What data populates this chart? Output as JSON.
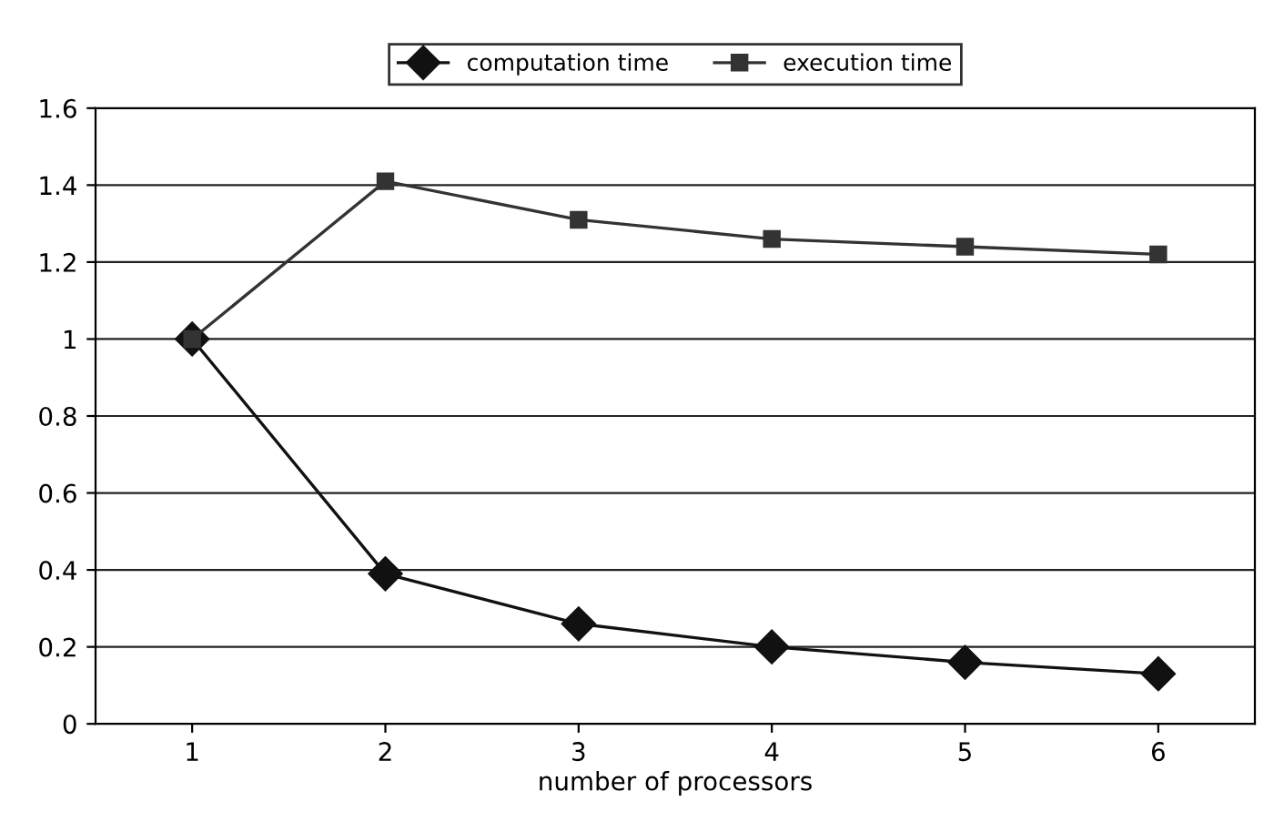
{
  "chart_data": {
    "type": "line",
    "xlabel": "number of processors",
    "categories": [
      "1",
      "2",
      "3",
      "4",
      "5",
      "6"
    ],
    "series": [
      {
        "name": "computation time",
        "color": "#111111",
        "marker": "diamond",
        "values": [
          1,
          0.39,
          0.26,
          0.2,
          0.16,
          0.13
        ]
      },
      {
        "name": "execution time",
        "color": "#333333",
        "marker": "square",
        "values": [
          1,
          1.41,
          1.31,
          1.26,
          1.24,
          1.22
        ]
      }
    ],
    "ylim": [
      0,
      1.6
    ],
    "yticks": [
      0,
      0.2,
      0.4,
      0.6,
      0.8,
      1,
      1.2,
      1.4,
      1.6
    ],
    "grid": "y",
    "legend": "top",
    "line_style": "solid"
  }
}
